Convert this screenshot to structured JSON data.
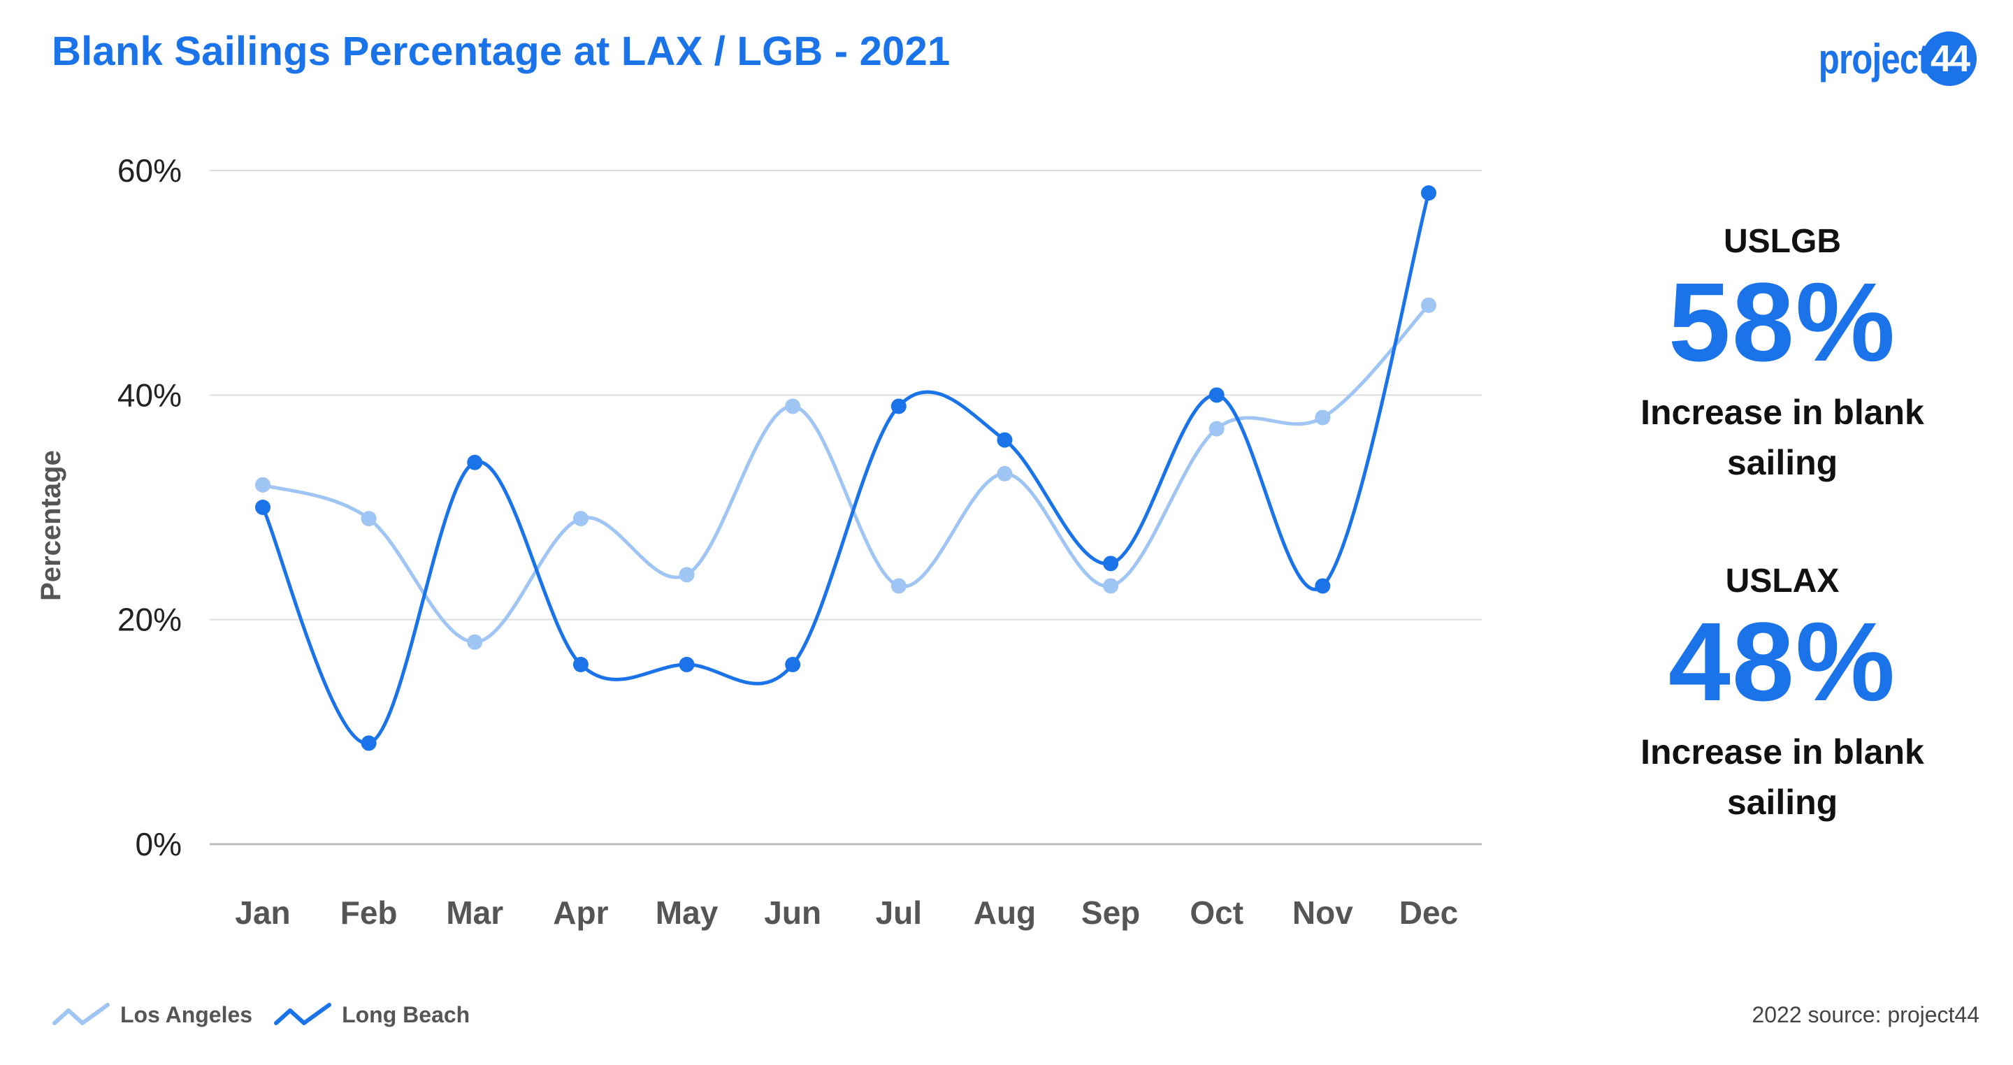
{
  "title": "Blank Sailings Percentage at LAX / LGB - 2021",
  "logo": {
    "text": "project",
    "badge": "44"
  },
  "chart_data": {
    "type": "line",
    "title": "Blank Sailings Percentage at LAX / LGB - 2021",
    "xlabel": "",
    "ylabel": "Percentage",
    "categories": [
      "Jan",
      "Feb",
      "Mar",
      "Apr",
      "May",
      "Jun",
      "Jul",
      "Aug",
      "Sep",
      "Oct",
      "Nov",
      "Dec"
    ],
    "ylim": [
      0,
      60
    ],
    "yticks": [
      0,
      20,
      40,
      60
    ],
    "ytick_labels": [
      "0%",
      "20%",
      "40%",
      "60%"
    ],
    "grid": true,
    "legend_position": "bottom-left",
    "series": [
      {
        "name": "Los Angeles",
        "color": "#9fc5f4",
        "values": [
          32,
          29,
          18,
          29,
          24,
          39,
          23,
          33,
          23,
          37,
          38,
          48
        ]
      },
      {
        "name": "Long Beach",
        "color": "#1a73e8",
        "values": [
          30,
          9,
          34,
          16,
          16,
          16,
          39,
          36,
          25,
          40,
          23,
          58
        ]
      }
    ]
  },
  "stats": [
    {
      "code": "USLGB",
      "value": "58%",
      "caption": "Increase in blank sailing"
    },
    {
      "code": "USLAX",
      "value": "48%",
      "caption": "Increase in blank sailing"
    }
  ],
  "source": "2022 source: project44",
  "colors": {
    "accent": "#1a73e8",
    "light": "#9fc5f4",
    "grid": "#dddddd",
    "axis": "#555555"
  }
}
